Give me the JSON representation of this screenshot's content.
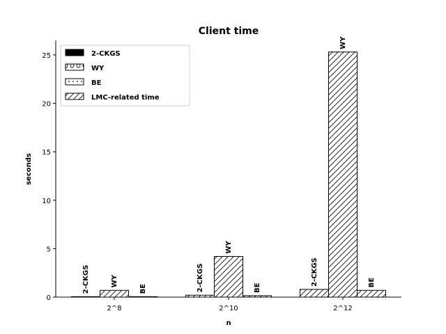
{
  "chart_data": {
    "type": "bar",
    "title": "Client time",
    "xlabel": "n",
    "ylabel": "seconds",
    "categories": [
      "2^8",
      "2^10",
      "2^12"
    ],
    "ylim": [
      0,
      26.5
    ],
    "yticks": [
      0,
      5,
      10,
      15,
      20,
      25
    ],
    "grid": false,
    "legend_placement": "top-left",
    "series": [
      {
        "name": "2-CKGS",
        "values": [
          0.05,
          0.2,
          0.8
        ]
      },
      {
        "name": "WY",
        "values": [
          0.7,
          4.2,
          25.3
        ]
      },
      {
        "name": "BE",
        "values": [
          0.05,
          0.15,
          0.7
        ]
      }
    ],
    "legend": [
      {
        "label": "2-CKGS",
        "pattern": "solid"
      },
      {
        "label": "WY",
        "pattern": "circles"
      },
      {
        "label": "BE",
        "pattern": "dots"
      },
      {
        "label": "LMC-related time",
        "pattern": "hatch"
      }
    ],
    "bar_labels": [
      "2-CKGS",
      "WY",
      "BE"
    ],
    "colors": {
      "edge": "#000000",
      "fill": "#ffffff",
      "solid": "#000000"
    }
  }
}
